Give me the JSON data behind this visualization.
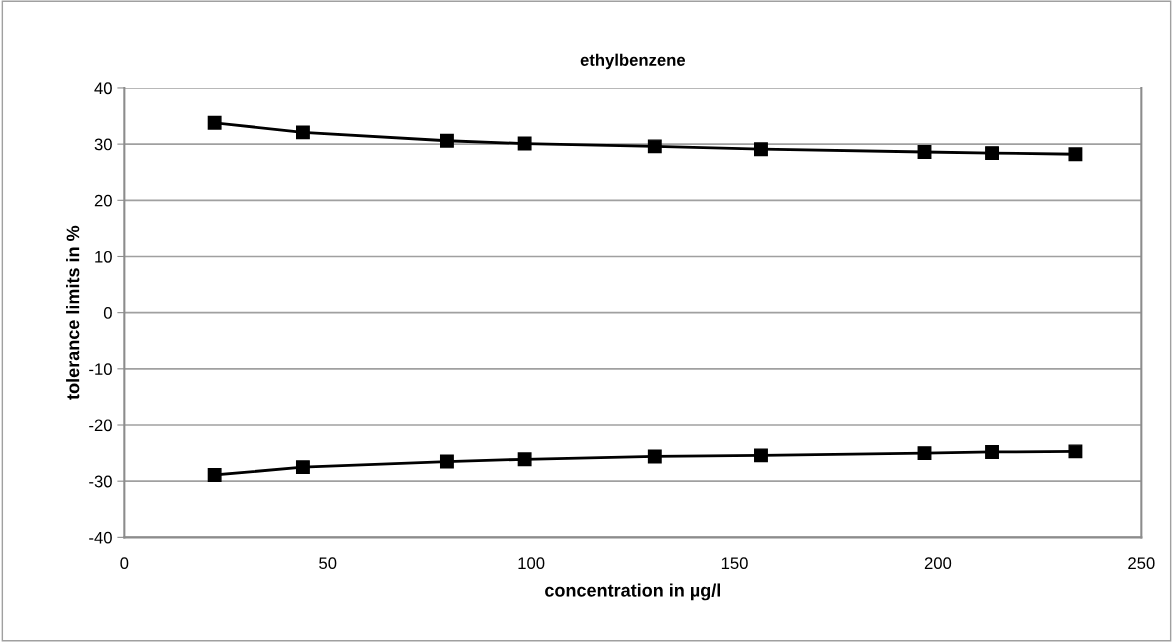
{
  "chart_data": {
    "type": "line",
    "title": "ethylbenzene",
    "xlabel": "concentration in µg/l",
    "ylabel": "tolerance limits in %",
    "x": [
      22.2,
      43.9,
      79.3,
      98.4,
      130.4,
      156.5,
      196.7,
      213.3,
      233.8
    ],
    "series": [
      {
        "color": "#000000",
        "values": [
          33.8,
          32.1,
          30.6,
          30.1,
          29.6,
          29.1,
          28.6,
          28.4,
          28.2
        ]
      },
      {
        "color": "#000000",
        "values": [
          -28.9,
          -27.5,
          -26.5,
          -26.1,
          -25.6,
          -25.4,
          -25.0,
          -24.8,
          -24.7
        ]
      }
    ],
    "xlim": [
      0,
      250
    ],
    "xticks": [
      0,
      50,
      100,
      150,
      200,
      250
    ],
    "ylim": [
      -40,
      40
    ],
    "yticks": [
      -40,
      -30,
      -20,
      -10,
      0,
      10,
      20,
      30,
      40
    ],
    "grid": "y",
    "marker": "square",
    "line_style": "solid"
  }
}
